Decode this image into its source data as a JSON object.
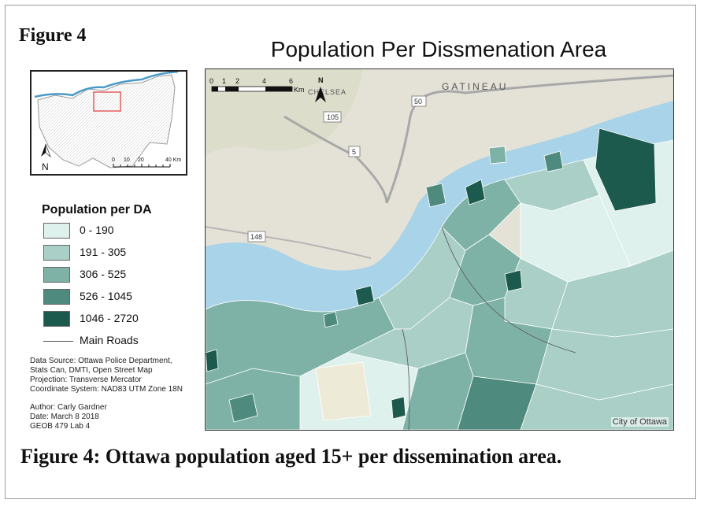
{
  "figure_label": "Figure 4",
  "map_title": "Population Per Dissmenation Area",
  "caption": "Figure 4: Ottawa population aged 15+ per dissemination area.",
  "inset": {
    "north_label": "N",
    "scale_labels": [
      "0",
      "10",
      "20",
      "40 Km"
    ]
  },
  "main_map": {
    "north_label": "N",
    "scale_labels": [
      "0",
      "1",
      "2",
      "4",
      "6"
    ],
    "scale_unit": "Km",
    "place_labels": [
      "GATINEAU",
      "CHELSEA"
    ],
    "road_labels": [
      "105",
      "50",
      "5",
      "148"
    ],
    "credit": "City of Ottawa"
  },
  "legend": {
    "title": "Population per DA",
    "classes": [
      {
        "label": "0 - 190",
        "color": "#dff1ed"
      },
      {
        "label": "191 - 305",
        "color": "#a9cfc7"
      },
      {
        "label": "306 - 525",
        "color": "#7fb2a7"
      },
      {
        "label": "526 - 1045",
        "color": "#4e8a7d"
      },
      {
        "label": "1046 - 2720",
        "color": "#1d5a4e"
      }
    ],
    "roads_label": "Main Roads"
  },
  "metadata": {
    "data_source": [
      "Data Source: Ottawa Police Department,",
      "Stats Can, DMTI, Open Street Map"
    ],
    "projection": "Projection: Transverse Mercator",
    "coordinate_system": "Coordinate System: NAD83 UTM Zone 18N",
    "author": "Author: Carly Gardner",
    "date": "Date: March 8 2018",
    "course": "GEOB 479 Lab 4"
  },
  "colors": {
    "water": "#a9d3e8",
    "basemap": "#e4e2d6",
    "extent_box": "#e0393e"
  }
}
